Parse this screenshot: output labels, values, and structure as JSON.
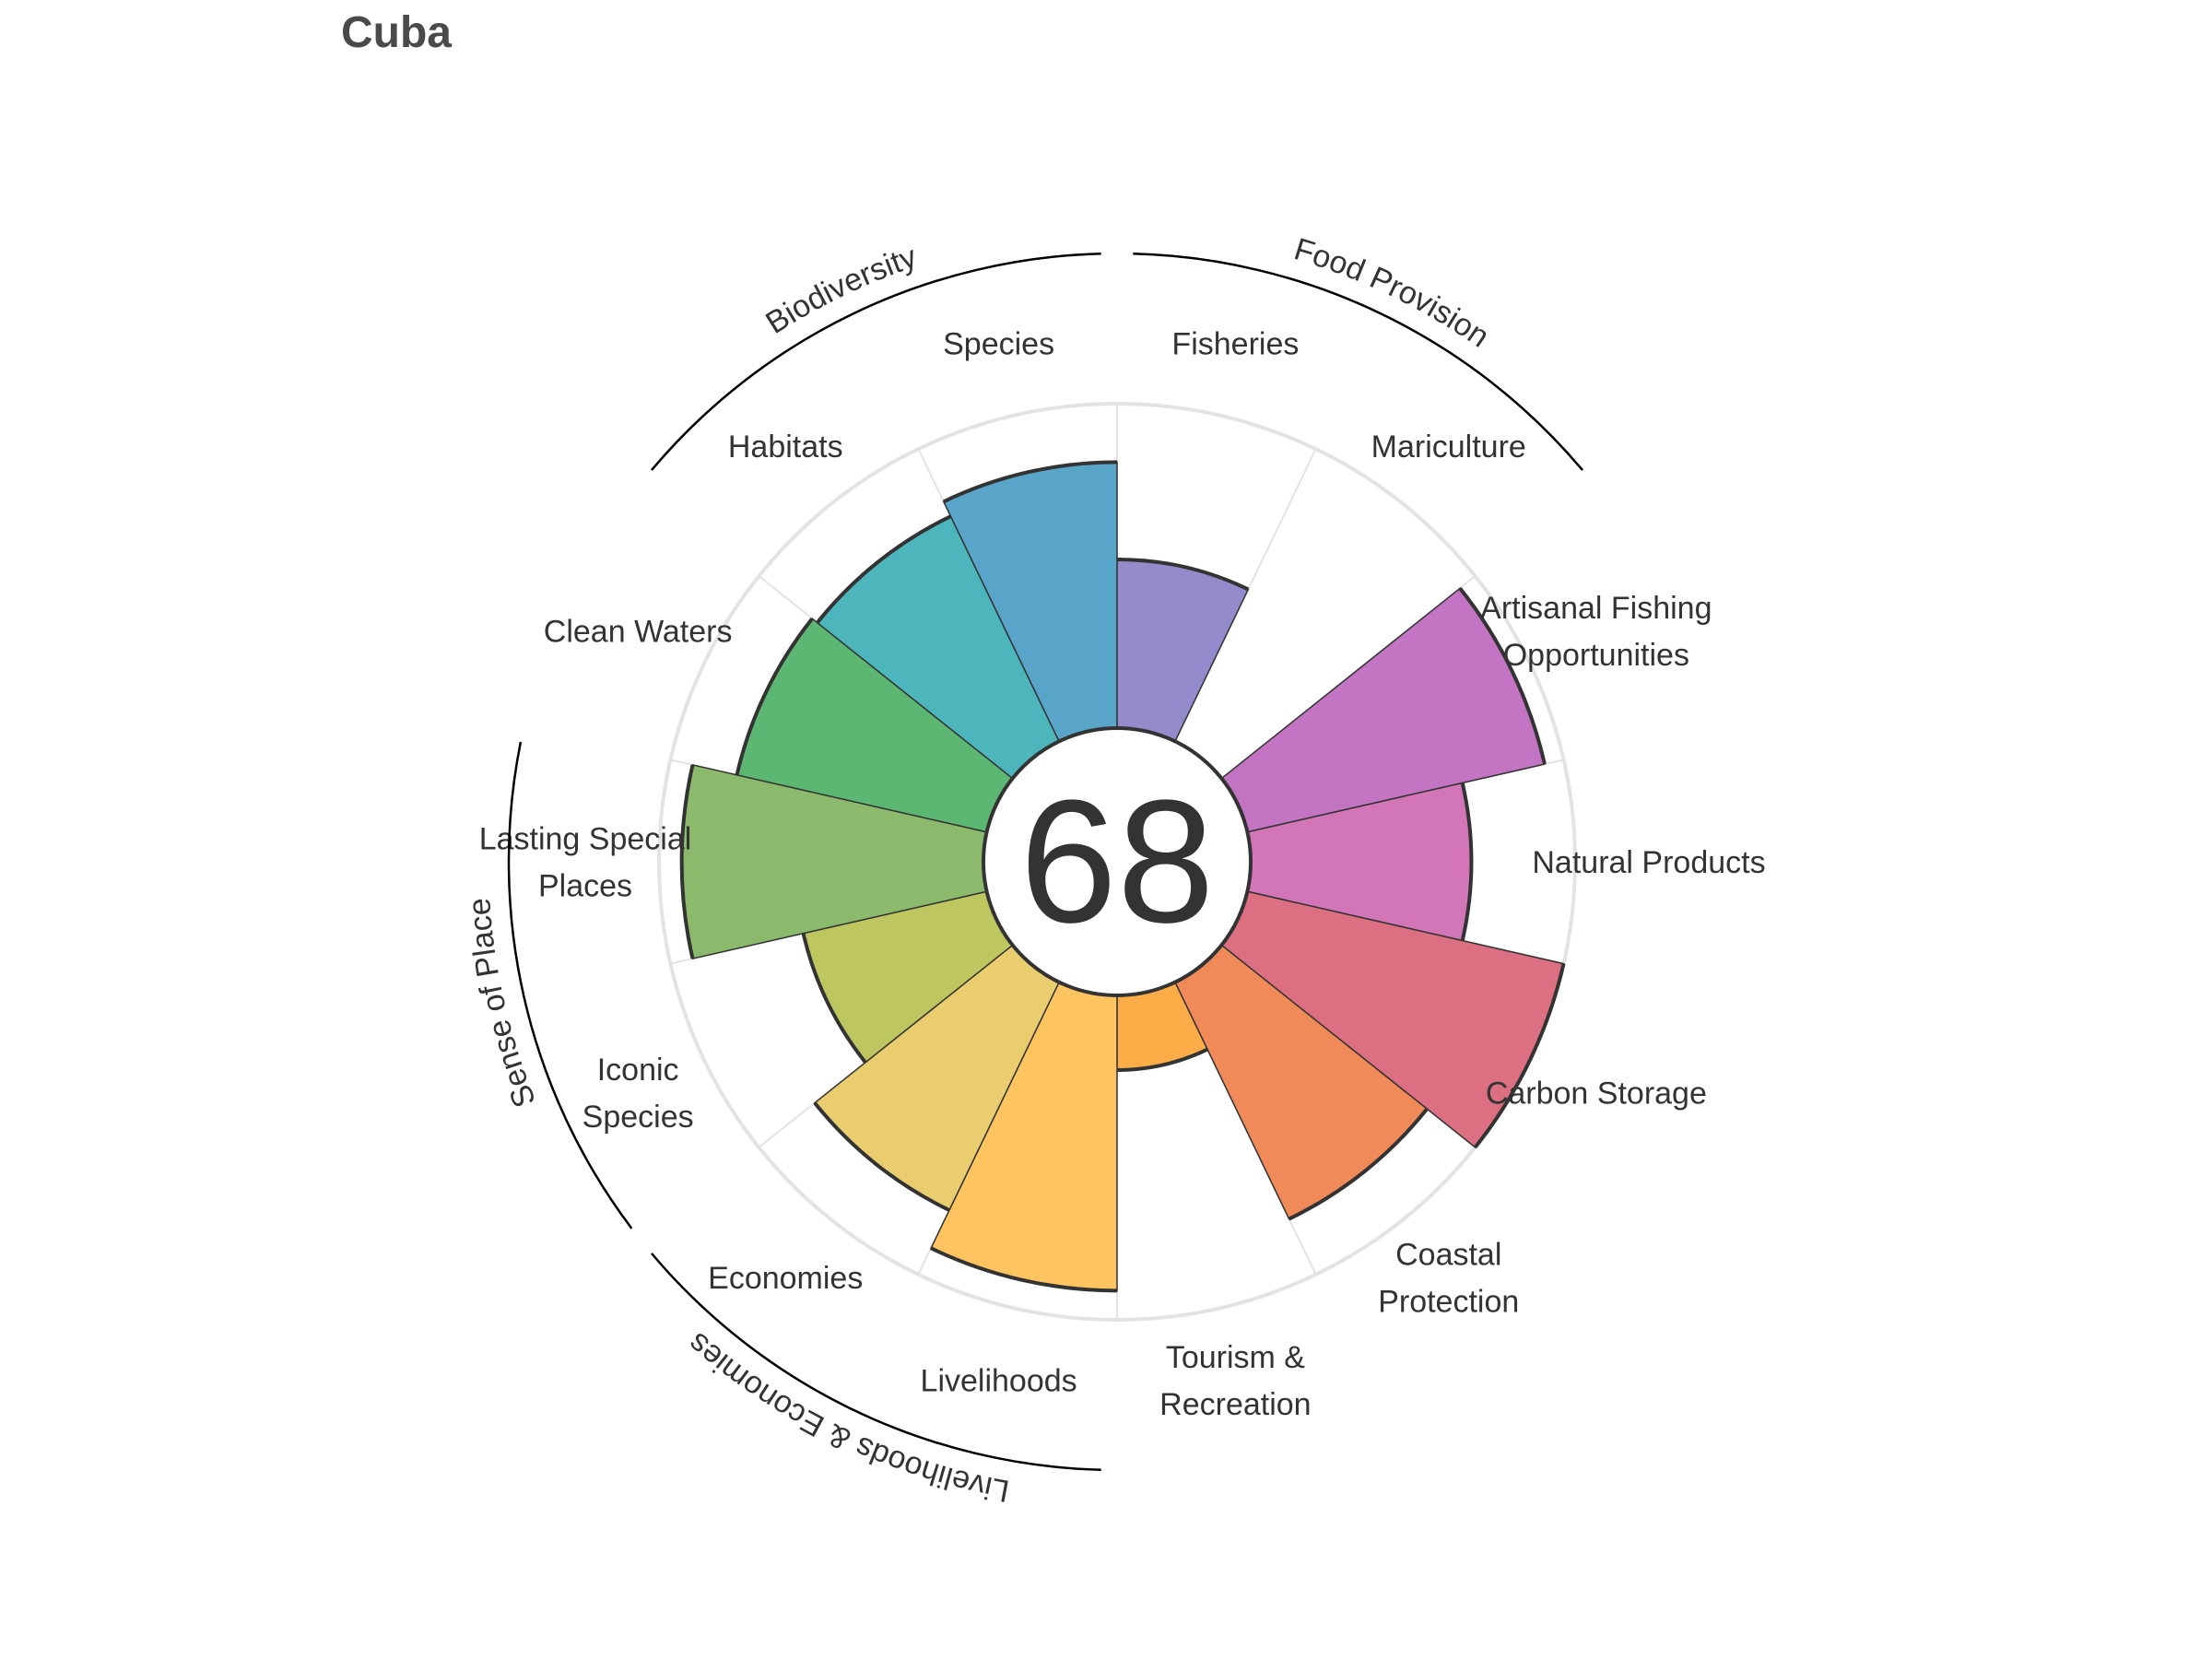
{
  "title": "Cuba",
  "chart_data": {
    "type": "rose",
    "center_score": "68",
    "rlim": [
      0,
      100
    ],
    "goals": [
      {
        "label": [
          "Fisheries"
        ],
        "value": 52,
        "color": "#938bcc",
        "group": "food"
      },
      {
        "label": [
          "Mariculture"
        ],
        "value": 0,
        "color": "#a98ed0",
        "group": "food"
      },
      {
        "label": [
          "Artisanal Fishing",
          "Opportunities"
        ],
        "value": 94,
        "color": "#c374c3",
        "group": null
      },
      {
        "label": [
          "Natural Products"
        ],
        "value": 68,
        "color": "#d276b7",
        "group": null
      },
      {
        "label": [
          "Carbon Storage"
        ],
        "value": 100,
        "color": "#dc6f81",
        "group": null
      },
      {
        "label": [
          "Coastal",
          "Protection"
        ],
        "value": 81,
        "color": "#f08a58",
        "group": null
      },
      {
        "label": [
          "Tourism &",
          "Recreation"
        ],
        "value": 23,
        "color": "#fdad48",
        "group": null
      },
      {
        "label": [
          "Livelihoods"
        ],
        "value": 91,
        "color": "#fdc460",
        "group": "liveco"
      },
      {
        "label": [
          "Economies"
        ],
        "value": 78,
        "color": "#e9cd6f",
        "group": "liveco"
      },
      {
        "label": [
          "Iconic",
          "Species"
        ],
        "value": 58,
        "color": "#bec660",
        "group": "sense"
      },
      {
        "label": [
          "Lasting Special",
          "Places"
        ],
        "value": 93,
        "color": "#8bba6d",
        "group": "sense"
      },
      {
        "label": [
          "Clean Waters"
        ],
        "value": 79,
        "color": "#5cb772",
        "group": null
      },
      {
        "label": [
          "Habitats"
        ],
        "value": 77,
        "color": "#4db6bd",
        "group": "bio"
      },
      {
        "label": [
          "Species"
        ],
        "value": 82,
        "color": "#59a4c9",
        "group": "bio"
      }
    ],
    "groups": [
      {
        "key": "food",
        "label": "Food Provision"
      },
      {
        "key": "bio",
        "label": "Biodiversity"
      },
      {
        "key": "sense",
        "label": "Sense of Place"
      },
      {
        "key": "liveco",
        "label": "Livelihoods & Economies"
      }
    ],
    "colors": {
      "grid": "#e3e3e3",
      "outline": "#333333",
      "text": "#333333"
    }
  }
}
